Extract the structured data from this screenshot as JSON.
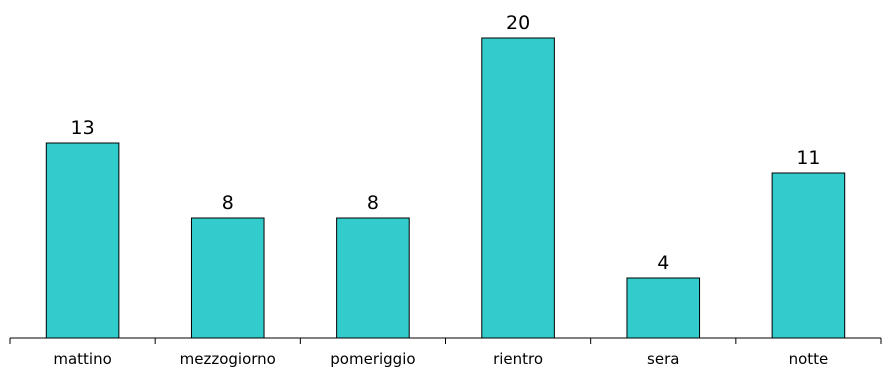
{
  "chart_data": {
    "type": "bar",
    "categories": [
      "mattino",
      "mezzogiorno",
      "pomeriggio",
      "rientro",
      "sera",
      "notte"
    ],
    "values": [
      13,
      8,
      8,
      20,
      4,
      11
    ],
    "data_labels": [
      "13",
      "8",
      "8",
      "20",
      "4",
      "11"
    ],
    "title": "",
    "xlabel": "",
    "ylabel": "",
    "ylim": [
      0,
      20
    ],
    "grid": false,
    "legend": "none",
    "bar_color": "#33CCCC"
  }
}
